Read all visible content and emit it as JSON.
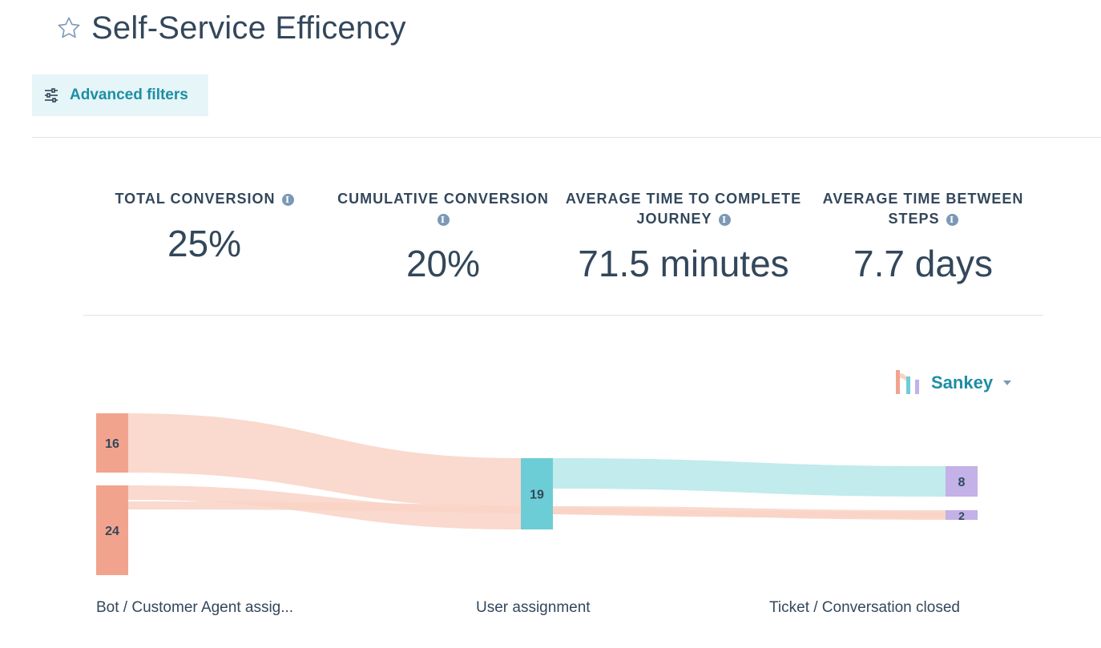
{
  "header": {
    "title": "Self-Service Efficency",
    "star_icon": "star-outline-icon"
  },
  "toolbar": {
    "filters_label": "Advanced filters",
    "filters_icon": "sliders-icon"
  },
  "kpis": [
    {
      "label": "TOTAL CONVERSION",
      "value": "25%"
    },
    {
      "label": "CUMULATIVE CONVERSION",
      "value": "20%"
    },
    {
      "label_line1": "AVERAGE TIME TO COMPLETE",
      "label_line2": "JOURNEY",
      "value": "71.5 minutes"
    },
    {
      "label_line1": "AVERAGE TIME BETWEEN",
      "label_line2": "STEPS",
      "value": "7.7 days"
    }
  ],
  "view_selector": {
    "label": "Sankey",
    "icon": "sankey-chart-icon"
  },
  "colors": {
    "accent": "#1d8ea3",
    "node_start": "#f2a38e",
    "link_start": "#f9d2c6",
    "node_mid": "#6dcdd6",
    "link_mid": "#b6e8ea",
    "node_end": "#c3b1e7"
  },
  "chart_data": {
    "type": "sankey",
    "stages": [
      "Bot / Customer Agent assig...",
      "User assignment",
      "Ticket / Conversation closed"
    ],
    "nodes": [
      {
        "id": "s0a",
        "stage": 0,
        "value": 16
      },
      {
        "id": "s0b",
        "stage": 0,
        "value": 24
      },
      {
        "id": "s1",
        "stage": 1,
        "value": 19
      },
      {
        "id": "s2a",
        "stage": 2,
        "value": 8
      },
      {
        "id": "s2b",
        "stage": 2,
        "value": 2
      }
    ],
    "links": [
      {
        "source": "s0a",
        "target": "s1",
        "value": 16
      },
      {
        "source": "s0b",
        "target": "s1",
        "value": 3
      },
      {
        "source": "s0b",
        "target": "s2b",
        "value": 1
      },
      {
        "source": "s1",
        "target": "s2a",
        "value": 8
      },
      {
        "source": "s1",
        "target": "s2b",
        "value": 1
      }
    ]
  }
}
